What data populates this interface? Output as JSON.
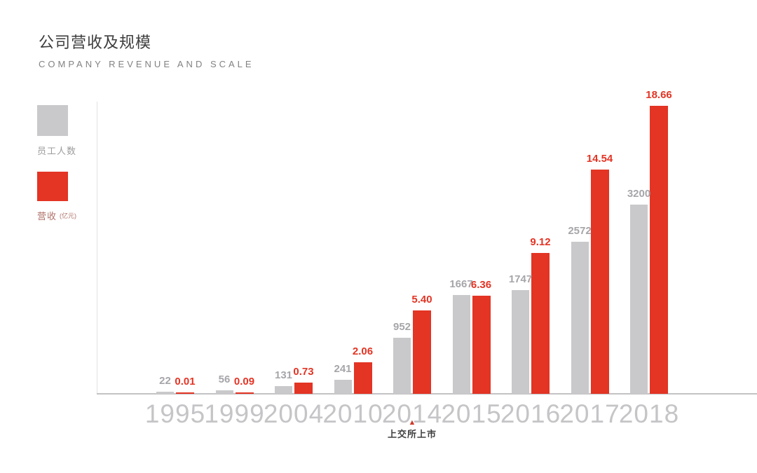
{
  "header": {
    "title": "公司营收及规模",
    "subtitle": "COMPANY REVENUE AND SCALE"
  },
  "legend": {
    "employees_label": "员工人数",
    "revenue_label": "营收",
    "revenue_unit": "(亿元)"
  },
  "colors": {
    "revenue_red": "#e33424",
    "employees_gray": "#c9c9cb",
    "title": "#3d3d3d",
    "subtitle": "#828282",
    "legend_gray_text": "#9c9c9c",
    "legend_red_text": "#b0736a",
    "year_label": "#c5c5c8",
    "value_gray_label": "#a6a6aa",
    "axis_line": "#c3c3c6",
    "divider_line": "#e2e2e2",
    "annotation_marker": "#cf3a2c",
    "annotation_text": "#3e3e3e"
  },
  "chart_data": {
    "type": "bar",
    "title": "公司营收及规模",
    "subtitle": "COMPANY REVENUE AND SCALE",
    "categories": [
      "1995",
      "1999",
      "2004",
      "2010",
      "2014",
      "2015",
      "2016",
      "2017",
      "2018"
    ],
    "series": [
      {
        "name": "员工人数",
        "color": "#c9c9cb",
        "values": [
          22,
          56,
          131,
          241,
          952,
          1667,
          1747,
          2572,
          3200
        ]
      },
      {
        "name": "营收(亿元)",
        "color": "#e33424",
        "values": [
          0.01,
          0.09,
          0.73,
          2.06,
          5.4,
          6.36,
          9.12,
          14.54,
          18.66
        ]
      }
    ],
    "annotation": {
      "category": "2014",
      "marker": "▲",
      "label": "上交所上市"
    },
    "legend_position": "left",
    "grid": false,
    "value_labels": true,
    "xlabel": "",
    "ylabel": ""
  }
}
